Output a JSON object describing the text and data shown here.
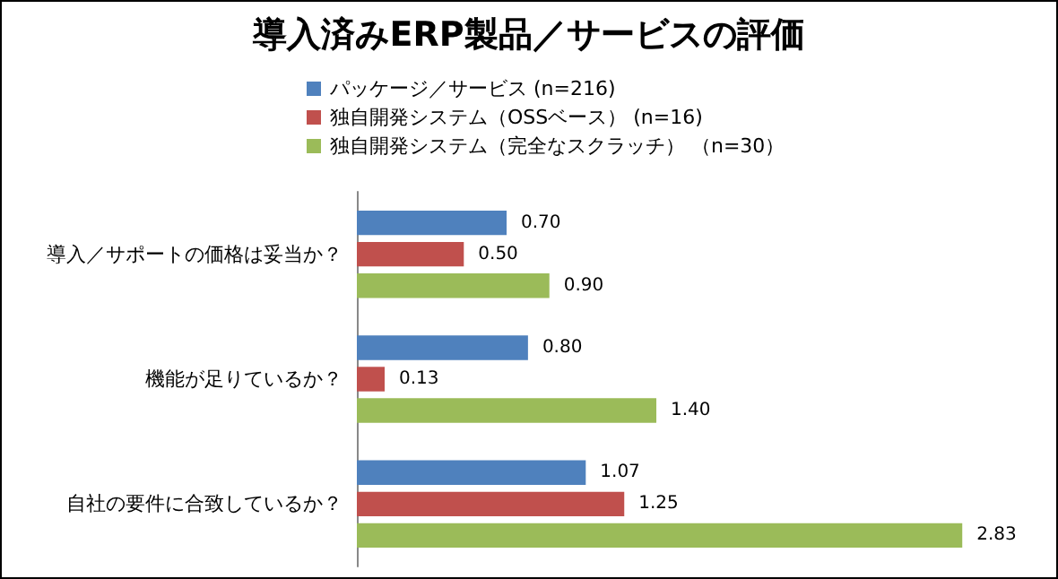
{
  "chart_data": {
    "type": "bar",
    "orientation": "horizontal",
    "title": "導入済みERP製品／サービスの評価",
    "categories": [
      "導入／サポートの価格は妥当か？",
      "機能が足りているか？",
      "自社の要件に合致しているか？"
    ],
    "series": [
      {
        "name": "パッケージ／サービス (n=216)",
        "color": "#4f81bd",
        "values": [
          0.7,
          0.8,
          1.07
        ],
        "value_labels": [
          "0.70",
          "0.80",
          "1.07"
        ]
      },
      {
        "name": "独自開発システム（OSSベース） (n=16)",
        "color": "#c0504d",
        "values": [
          0.5,
          0.13,
          1.25
        ],
        "value_labels": [
          "0.50",
          "0.13",
          "1.25"
        ]
      },
      {
        "name": "独自開発システム（完全なスクラッチ） （n=30）",
        "color": "#9bbb59",
        "values": [
          0.9,
          1.4,
          2.83
        ],
        "value_labels": [
          "0.90",
          "1.40",
          "2.83"
        ]
      }
    ],
    "legend": "top",
    "grid": false,
    "tick_labels": "y"
  }
}
